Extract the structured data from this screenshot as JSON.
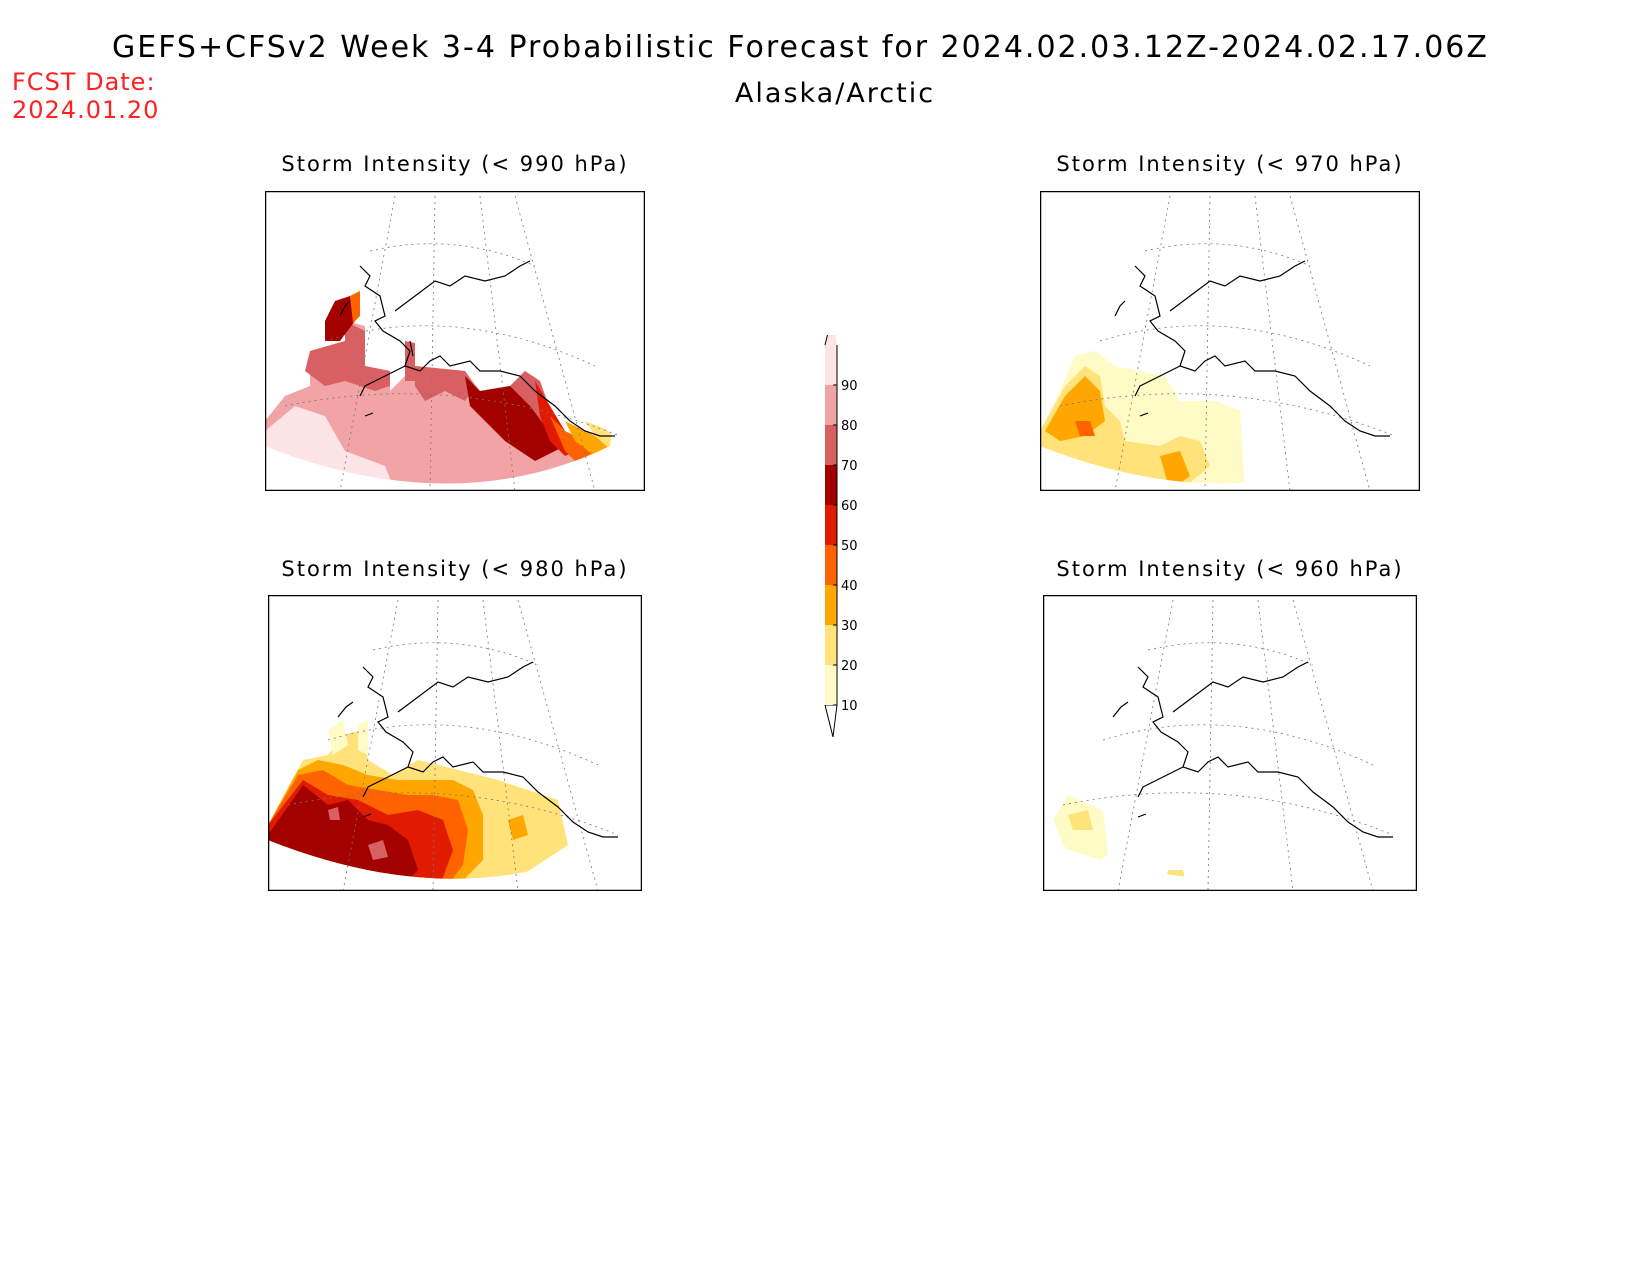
{
  "header": {
    "title": "GEFS+CFSv2 Week 3-4 Probabilistic Forecast for 2024.02.03.12Z-2024.02.17.06Z",
    "region": "Alaska/Arctic",
    "fcst_label": "FCST Date:",
    "fcst_date": "2024.01.20"
  },
  "panels": [
    {
      "title": "Storm Intensity (< 990 hPa)"
    },
    {
      "title": "Storm Intensity (< 970 hPa)"
    },
    {
      "title": "Storm Intensity (< 980 hPa)"
    },
    {
      "title": "Storm Intensity (< 960 hPa)"
    }
  ],
  "colorbar": {
    "ticks": [
      "10",
      "20",
      "30",
      "40",
      "50",
      "60",
      "70",
      "80",
      "90"
    ],
    "colors": [
      "#fffbc6",
      "#ffe37a",
      "#ffa600",
      "#ff6300",
      "#e01b00",
      "#a30000",
      "#d96062",
      "#f2a3a5",
      "#fde4e6"
    ]
  }
}
